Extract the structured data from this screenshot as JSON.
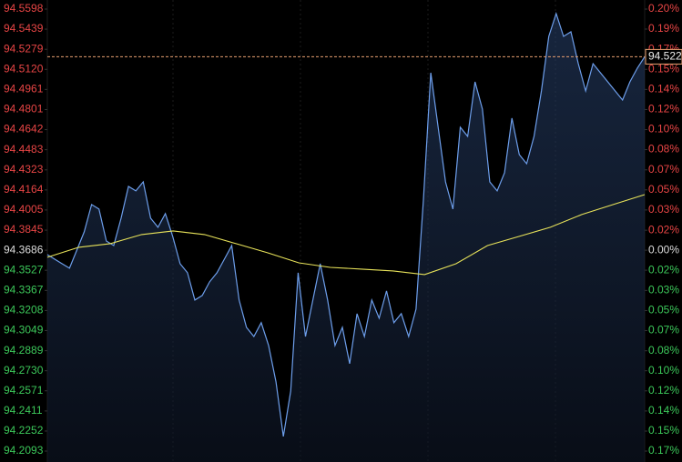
{
  "chart_data": {
    "type": "line",
    "series": [
      {
        "name": "price",
        "color": "#6d9eeb",
        "values": [
          94.3651,
          94.3615,
          94.3579,
          94.3543,
          94.3687,
          94.3832,
          94.4048,
          94.4012,
          94.3759,
          94.3723,
          94.394,
          94.4192,
          94.4156,
          94.4228,
          94.394,
          94.3868,
          94.3976,
          94.3795,
          94.3579,
          94.3507,
          94.3291,
          94.3327,
          94.3435,
          94.3507,
          94.3615,
          94.3723,
          94.3291,
          94.3074,
          94.3002,
          94.3111,
          94.293,
          94.2642,
          94.2209,
          94.257,
          94.3507,
          94.3002,
          94.3291,
          94.3579,
          94.3291,
          94.293,
          94.3074,
          94.2786,
          94.3183,
          94.3002,
          94.3291,
          94.3147,
          94.3363,
          94.3111,
          94.3183,
          94.3002,
          94.3219,
          94.4084,
          94.5093,
          94.4661,
          94.4228,
          94.4012,
          94.4661,
          94.4589,
          94.5021,
          94.4805,
          94.4228,
          94.4156,
          94.43,
          94.4733,
          94.4444,
          94.4372,
          94.4589,
          94.4949,
          94.5382,
          94.5562,
          94.5382,
          94.5418,
          94.5165,
          94.4949,
          94.5165,
          94.5093,
          94.5021,
          94.4949,
          94.4877,
          94.5021,
          94.5129,
          94.522
        ]
      },
      {
        "name": "average",
        "color": "#e8e35a",
        "values": [
          94.363,
          94.3709,
          94.3738,
          94.381,
          94.3839,
          94.381,
          94.3738,
          94.3666,
          94.3586,
          94.355,
          94.3536,
          94.3522,
          94.3493,
          94.3579,
          94.3723,
          94.3795,
          94.3868,
          94.3969,
          94.4048,
          94.4127
        ]
      }
    ],
    "last_price": 94.522,
    "ylim": [
      94.2093,
      94.5598
    ],
    "yticks": [
      94.5598,
      94.5439,
      94.5279,
      {
        "value": 94.512,
        "label": "94.5120"
      },
      94.4961,
      94.4801,
      94.4642,
      94.4483,
      94.4323,
      94.4164,
      94.4005,
      94.3845,
      94.3686,
      94.3527,
      94.3367,
      94.3208,
      94.3049,
      94.2889,
      {
        "value": 94.273,
        "label": "94.2730"
      },
      94.2571,
      94.2411,
      94.2252,
      94.2093
    ],
    "y2lim": [
      -0.1688,
      0.2026
    ],
    "y2ticks": [
      {
        "value": 0.2026,
        "label": "0.20%"
      },
      {
        "value": 0.1858,
        "label": "0.19%"
      },
      {
        "value": 0.1688,
        "label": "0.17%"
      },
      {
        "value": 0.152,
        "label": "0.15%"
      },
      {
        "value": 0.1351,
        "label": "0.14%"
      },
      {
        "value": 0.1182,
        "label": "0.12%"
      },
      {
        "value": 0.1013,
        "label": "0.10%"
      },
      {
        "value": 0.0845,
        "label": "0.08%"
      },
      {
        "value": 0.0675,
        "label": "0.07%"
      },
      {
        "value": 0.0507,
        "label": "0.05%"
      },
      {
        "value": 0.0338,
        "label": "0.03%"
      },
      {
        "value": 0.0168,
        "label": "0.02%"
      },
      {
        "value": 0,
        "label": "0.00%"
      },
      {
        "value": -0.0168,
        "label": "0.02%"
      },
      {
        "value": -0.0338,
        "label": "0.03%"
      },
      {
        "value": -0.0507,
        "label": "0.05%"
      },
      {
        "value": -0.0675,
        "label": "0.07%"
      },
      {
        "value": -0.0845,
        "label": "0.08%"
      },
      {
        "value": -0.1013,
        "label": "0.10%"
      },
      {
        "value": -0.1182,
        "label": "0.12%"
      },
      {
        "value": -0.1351,
        "label": "0.14%"
      },
      {
        "value": -0.152,
        "label": "0.15%"
      },
      {
        "value": -0.1688,
        "label": "0.17%"
      }
    ],
    "up_color": "#e84545",
    "down_color": "#3cc85a",
    "flat_color": "#dddddd",
    "last_line_color": "#e8a070"
  }
}
